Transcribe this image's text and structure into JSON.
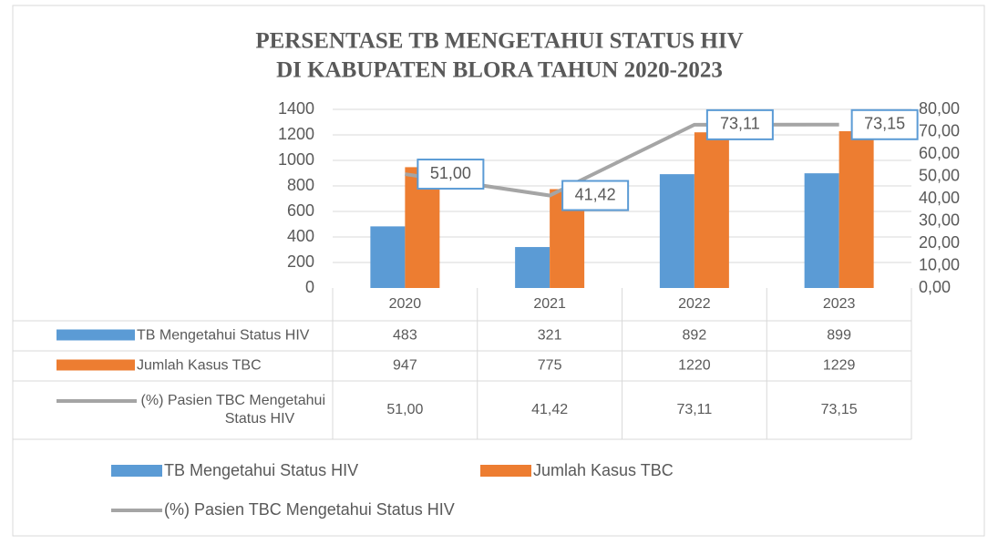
{
  "chart_data": {
    "type": "bar",
    "title": [
      "PERSENTASE TB MENGETAHUI STATUS HIV",
      "DI KABUPATEN BLORA TAHUN 2020-2023"
    ],
    "categories": [
      "2020",
      "2021",
      "2022",
      "2023"
    ],
    "series": [
      {
        "name": "TB Mengetahui Status HIV",
        "color": "#5b9bd5",
        "values": [
          483,
          321,
          892,
          899
        ]
      },
      {
        "name": "Jumlah Kasus TBC",
        "color": "#ed7d31",
        "values": [
          947,
          775,
          1220,
          1229
        ]
      },
      {
        "name": "(%) Pasien TBC Mengetahui Status HIV",
        "type": "line",
        "axis": "y2",
        "color": "#a5a5a5",
        "values": [
          51.0,
          41.42,
          73.11,
          73.15
        ],
        "value_labels": [
          "51,00",
          "41,42",
          "73,11",
          "73,15"
        ]
      }
    ],
    "ylim": [
      0,
      1400
    ],
    "yticks": [
      0,
      200,
      400,
      600,
      800,
      1000,
      1200,
      1400
    ],
    "y2lim": [
      0,
      80
    ],
    "y2ticks": [
      {
        "value": 0,
        "label": "0,00"
      },
      {
        "value": 10,
        "label": "10,00"
      },
      {
        "value": 20,
        "label": "20,00"
      },
      {
        "value": 30,
        "label": "30,00"
      },
      {
        "value": 40,
        "label": "40,00"
      },
      {
        "value": 50,
        "label": "50,00"
      },
      {
        "value": 60,
        "label": "60,00"
      },
      {
        "value": 70,
        "label": "70,00"
      },
      {
        "value": 80,
        "label": "80,00"
      }
    ],
    "grid": true,
    "data_table": true,
    "legend": "bottom"
  }
}
